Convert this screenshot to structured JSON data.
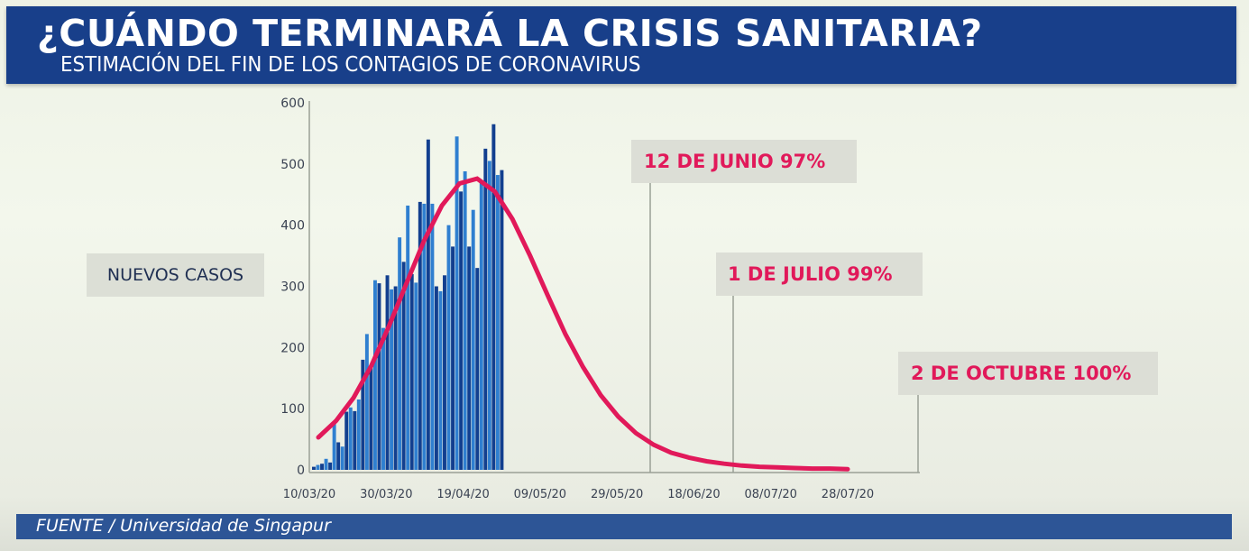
{
  "header": {
    "title": "¿CUÁNDO TERMINARÁ LA CRISIS SANITARIA?",
    "subtitle": "ESTIMACIÓN DEL FIN DE LOS CONTAGIOS DE CORONAVIRUS"
  },
  "footer": {
    "source": "FUENTE / Universidad de Singapur"
  },
  "colors": {
    "header_bg": "#183f8a",
    "bar_dark": "#123f8f",
    "bar_light": "#2f7fd0",
    "curve": "#e1195a",
    "annotation_text": "#e1195a",
    "footer_bg": "#2d5596"
  },
  "chart_data": {
    "type": "bar",
    "title": "¿CUÁNDO TERMINARÁ LA CRISIS SANITARIA?",
    "subtitle": "ESTIMACIÓN DEL FIN DE LOS CONTAGIOS DE CORONAVIRUS",
    "xlabel": "",
    "ylabel": "NUEVOS CASOS",
    "ylim": [
      0,
      600
    ],
    "yticks": [
      0,
      100,
      200,
      300,
      400,
      500,
      600
    ],
    "xlim_days_from_start": [
      0,
      140
    ],
    "start_date": "10/03/20",
    "xtick_labels": [
      "10/03/20",
      "30/03/20",
      "19/04/20",
      "09/05/20",
      "29/05/20",
      "18/06/20",
      "08/07/20",
      "28/07/20"
    ],
    "xtick_days": [
      0,
      20,
      40,
      60,
      80,
      100,
      120,
      140
    ],
    "grid": false,
    "series": [
      {
        "name": "Nuevos casos diarios",
        "type": "bar",
        "values": [
          5,
          8,
          10,
          18,
          12,
          78,
          45,
          38,
          95,
          102,
          96,
          115,
          180,
          222,
          168,
          310,
          305,
          232,
          318,
          295,
          300,
          380,
          340,
          432,
          320,
          306,
          438,
          435,
          540,
          435,
          300,
          292,
          318,
          400,
          365,
          545,
          455,
          488,
          365,
          425,
          330,
          470,
          525,
          505,
          565,
          482,
          490
        ]
      },
      {
        "name": "Curva estimada",
        "type": "line",
        "x_days": [
          0,
          5,
          10,
          15,
          20,
          25,
          30,
          35,
          40,
          45,
          50,
          55,
          60,
          65,
          70,
          75,
          80,
          85,
          90,
          95,
          100,
          105,
          110,
          115,
          120,
          125,
          130,
          135,
          140,
          145,
          150
        ],
        "values": [
          53,
          80,
          118,
          170,
          235,
          305,
          375,
          432,
          468,
          476,
          455,
          410,
          350,
          285,
          222,
          168,
          122,
          87,
          60,
          41,
          28,
          20,
          14,
          10,
          7,
          5,
          4,
          3,
          2,
          2,
          1
        ]
      }
    ],
    "annotations": [
      {
        "label": "12 DE JUNIO 97%",
        "date": "12/06/20",
        "day": 94
      },
      {
        "label": "1 DE JULIO 99%",
        "date": "01/07/20",
        "day": 113
      },
      {
        "label": "2 DE OCTUBRE 100%",
        "date": "02/10/20",
        "day": "off-axis"
      }
    ]
  }
}
